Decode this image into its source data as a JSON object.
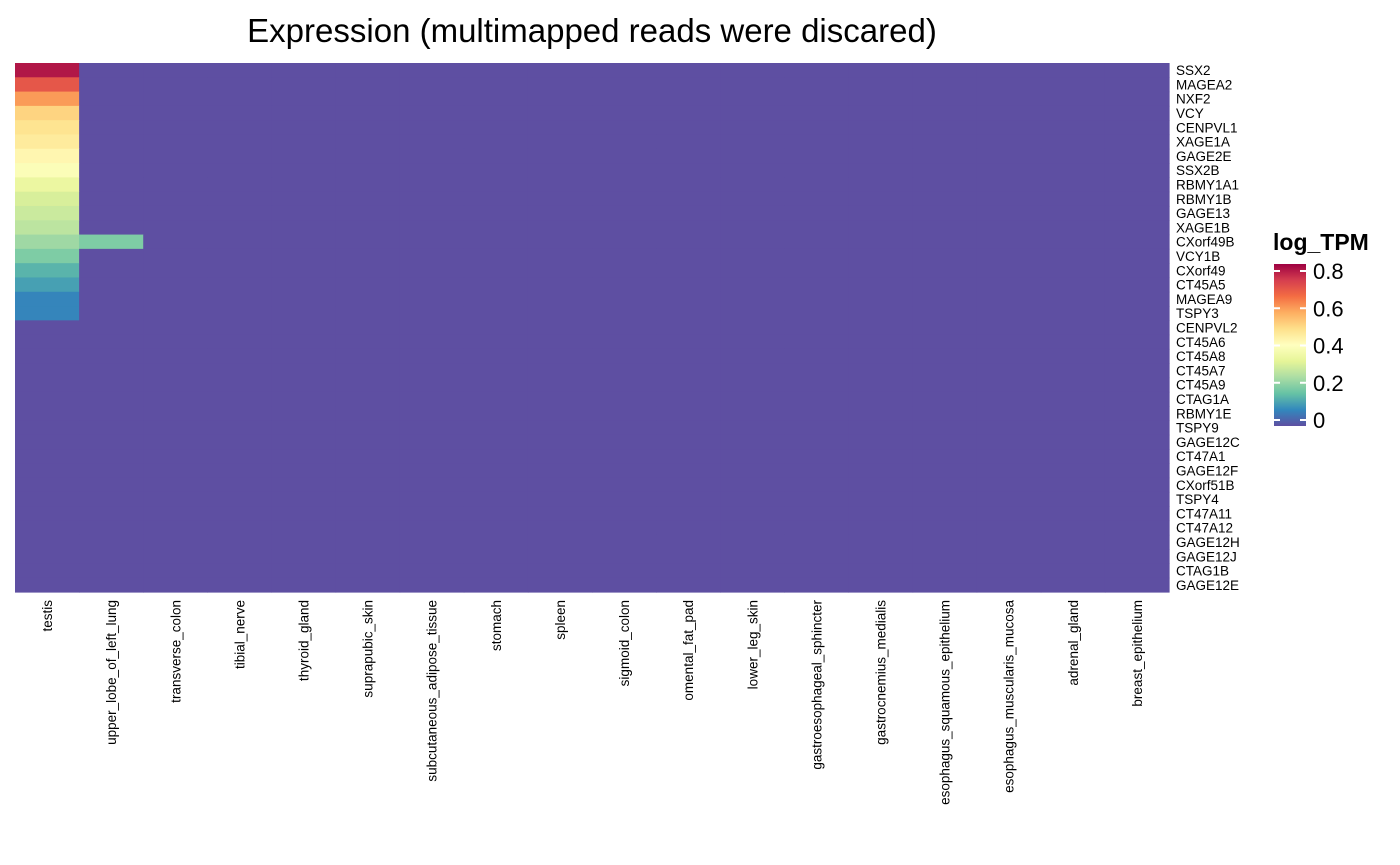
{
  "chart_data": {
    "type": "heatmap",
    "title": "Expression (multimapped reads were discared)",
    "rows": [
      "SSX2",
      "MAGEA2",
      "NXF2",
      "VCY",
      "CENPVL1",
      "XAGE1A",
      "GAGE2E",
      "SSX2B",
      "RBMY1A1",
      "RBMY1B",
      "GAGE13",
      "XAGE1B",
      "CXorf49B",
      "VCY1B",
      "CXorf49",
      "CT45A5",
      "MAGEA9",
      "TSPY3",
      "CENPVL2",
      "CT45A6",
      "CT45A8",
      "CT45A7",
      "CT45A9",
      "CTAG1A",
      "RBMY1E",
      "TSPY9",
      "GAGE12C",
      "CT47A1",
      "GAGE12F",
      "CXorf51B",
      "TSPY4",
      "CT47A11",
      "CT47A12",
      "GAGE12H",
      "GAGE12J",
      "CTAG1B",
      "GAGE12E"
    ],
    "columns": [
      "testis",
      "upper_lobe_of_left_lung",
      "transverse_colon",
      "tibial_nerve",
      "thyroid_gland",
      "suprapubic_skin",
      "subcutaneous_adipose_tissue",
      "stomach",
      "spleen",
      "sigmoid_colon",
      "omental_fat_pad",
      "lower_leg_skin",
      "gastroesophageal_sphincter",
      "gastrocnemius_medialis",
      "esophagus_squamous_epithelium",
      "esophagus_muscularis_mucosa",
      "adrenal_gland",
      "breast_epithelium"
    ],
    "sparse_values": [
      {
        "row": "SSX2",
        "col": "testis",
        "value": 0.82
      },
      {
        "row": "MAGEA2",
        "col": "testis",
        "value": 0.72
      },
      {
        "row": "NXF2",
        "col": "testis",
        "value": 0.62
      },
      {
        "row": "VCY",
        "col": "testis",
        "value": 0.53
      },
      {
        "row": "CENPVL1",
        "col": "testis",
        "value": 0.5
      },
      {
        "row": "XAGE1A",
        "col": "testis",
        "value": 0.48
      },
      {
        "row": "GAGE2E",
        "col": "testis",
        "value": 0.45
      },
      {
        "row": "SSX2B",
        "col": "testis",
        "value": 0.41
      },
      {
        "row": "RBMY1A1",
        "col": "testis",
        "value": 0.36
      },
      {
        "row": "RBMY1B",
        "col": "testis",
        "value": 0.32
      },
      {
        "row": "GAGE13",
        "col": "testis",
        "value": 0.3
      },
      {
        "row": "XAGE1B",
        "col": "testis",
        "value": 0.28
      },
      {
        "row": "CXorf49B",
        "col": "testis",
        "value": 0.24
      },
      {
        "row": "CXorf49B",
        "col": "upper_lobe_of_left_lung",
        "value": 0.2
      },
      {
        "row": "VCY1B",
        "col": "testis",
        "value": 0.2
      },
      {
        "row": "CXorf49",
        "col": "testis",
        "value": 0.15
      },
      {
        "row": "CT45A5",
        "col": "testis",
        "value": 0.12
      },
      {
        "row": "MAGEA9",
        "col": "testis",
        "value": 0.08
      },
      {
        "row": "TSPY3",
        "col": "testis",
        "value": 0.08
      }
    ],
    "default_value": 0,
    "value_range": [
      0,
      0.85
    ],
    "legend": {
      "title": "log_TPM",
      "ticks": [
        0.8,
        0.6,
        0.4,
        0.2,
        0
      ],
      "tick_labels": [
        "0.8",
        "0.6",
        "0.4",
        "0.2",
        "0"
      ],
      "palette": [
        "#5E4FA2",
        "#3288BD",
        "#66C2A5",
        "#ABDDA4",
        "#E6F598",
        "#FFFFBF",
        "#FEE08B",
        "#FDAE61",
        "#F46D43",
        "#D53E4F",
        "#9E0142"
      ],
      "position": "right"
    }
  }
}
